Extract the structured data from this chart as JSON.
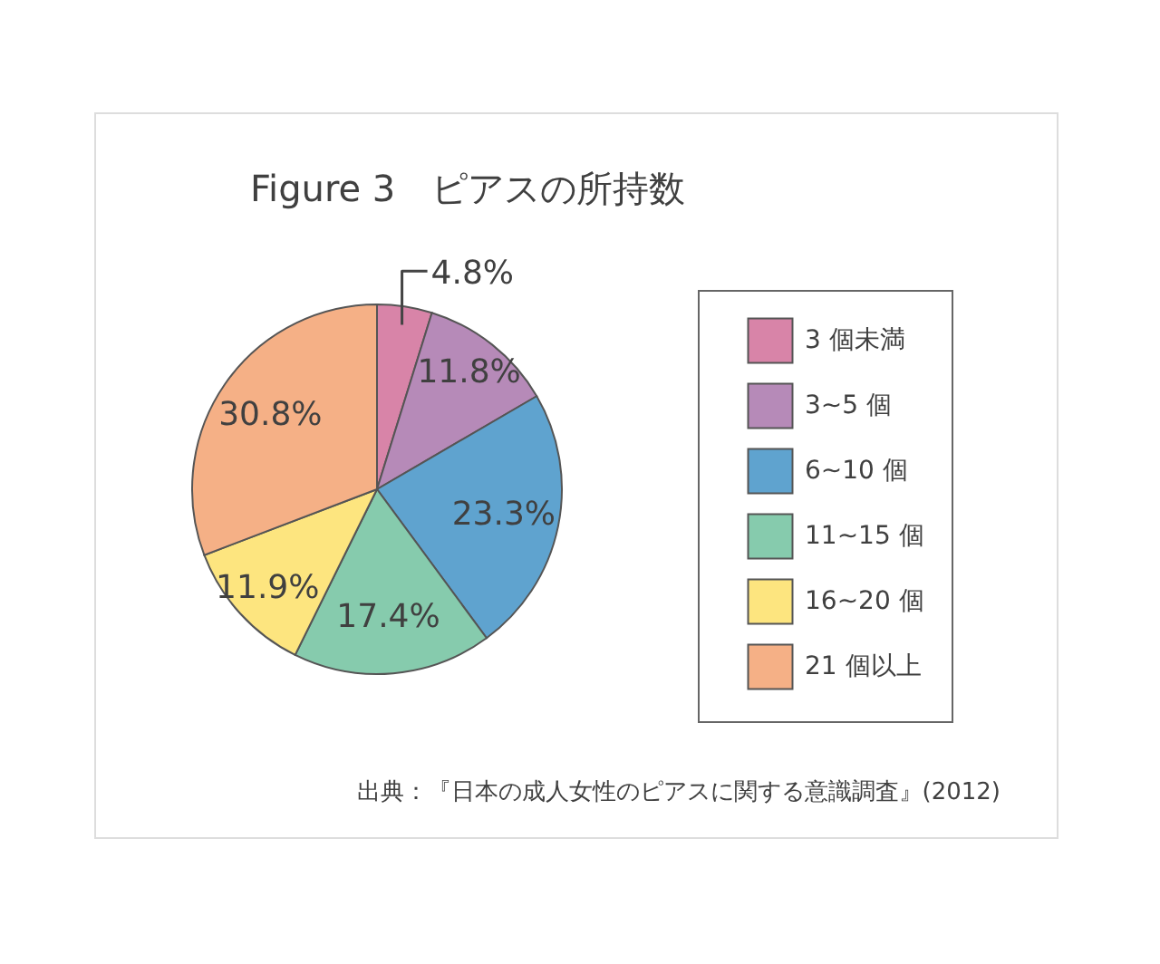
{
  "chart_data": {
    "type": "pie",
    "title": "Figure 3　ピアスの所持数",
    "categories": [
      "3 個未満",
      "3~5 個",
      "6~10 個",
      "11~15 個",
      "16~20 個",
      "21 個以上"
    ],
    "values": [
      4.8,
      11.8,
      23.3,
      17.4,
      11.9,
      30.8
    ],
    "colors": [
      "#d884a8",
      "#b68ab8",
      "#5fa3cf",
      "#86cbad",
      "#fde57f",
      "#f5b086"
    ],
    "value_labels": [
      "4.8%",
      "11.8%",
      "23.3%",
      "17.4%",
      "11.9%",
      "30.8%"
    ],
    "legend": "right",
    "annotations": [
      "出典：『日本の成人女性のピアスに関する意識調査』(2012)"
    ]
  }
}
